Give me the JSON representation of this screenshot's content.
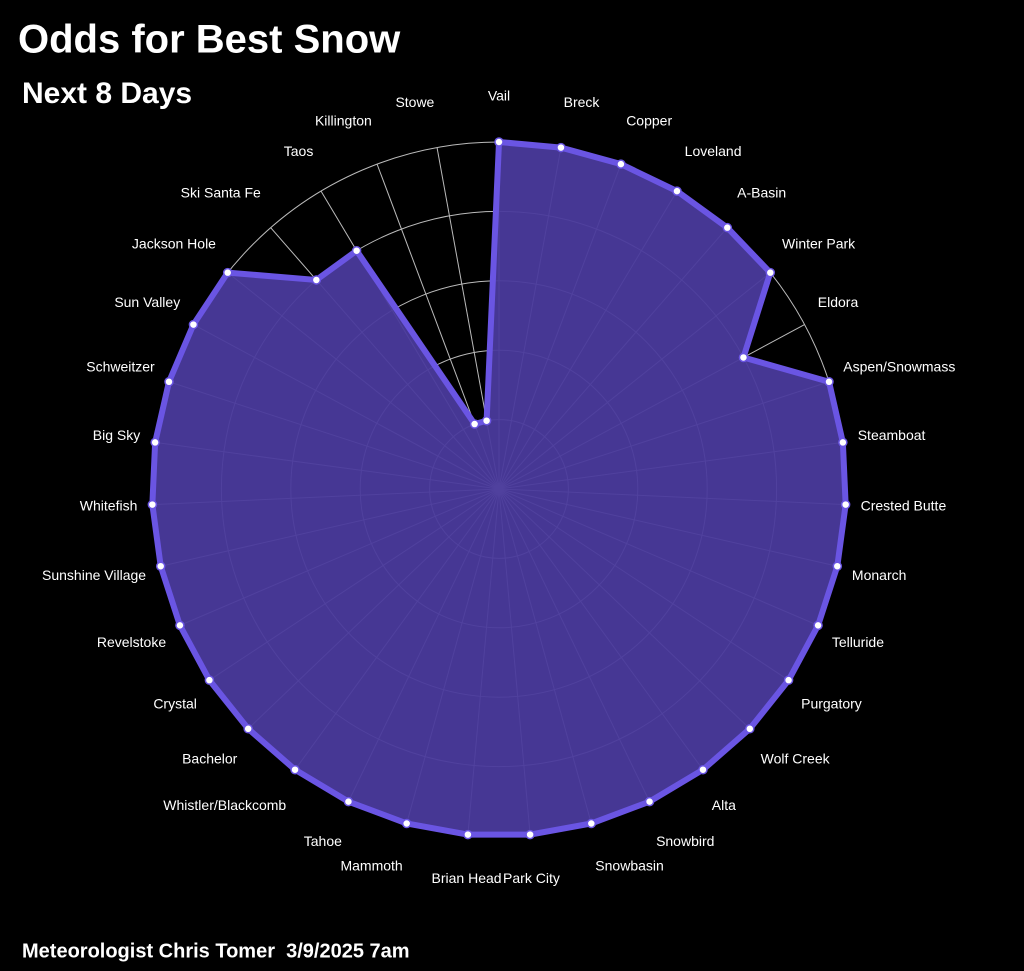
{
  "chart_data": {
    "type": "radar",
    "title": "Odds for Best Snow",
    "subtitle": "Next 8 Days",
    "footnote": "Meteorologist Chris Tomer  3/9/2025 7am",
    "categories": [
      "Vail",
      "Breck",
      "Copper",
      "Loveland",
      "A-Basin",
      "Winter Park",
      "Eldora",
      "Aspen/Snowmass",
      "Steamboat",
      "Crested Butte",
      "Monarch",
      "Telluride",
      "Purgatory",
      "Wolf Creek",
      "Alta",
      "Snowbird",
      "Snowbasin",
      "Park City",
      "Brian Head",
      "Mammoth",
      "Tahoe",
      "Whistler/Blackcomb",
      "Bachelor",
      "Crystal",
      "Revelstoke",
      "Sunshine Village",
      "Whitefish",
      "Big Sky",
      "Schweitzer",
      "Sun Valley",
      "Jackson Hole",
      "Ski Santa Fe",
      "Taos",
      "Killington",
      "Stowe"
    ],
    "values": [
      100,
      100,
      100,
      100,
      100,
      100,
      80,
      100,
      100,
      100,
      100,
      100,
      100,
      100,
      100,
      100,
      100,
      100,
      100,
      100,
      100,
      100,
      100,
      100,
      100,
      100,
      100,
      100,
      100,
      100,
      100,
      80,
      80,
      20,
      20
    ],
    "color": "#6a55e3",
    "fill": "#4a3a9c",
    "ylim": [
      0,
      100
    ],
    "yticks": [
      20,
      40,
      60,
      80,
      100
    ],
    "grid": true
  }
}
